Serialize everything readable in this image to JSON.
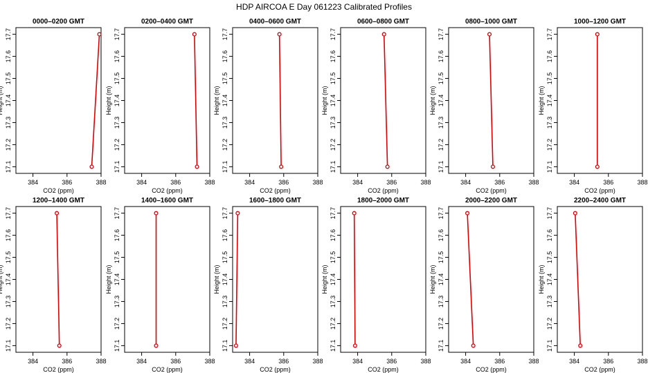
{
  "figure": {
    "title": "HDP  AIRCOA E  Day 061223  Calibrated Profiles",
    "line_color": "#e00000"
  },
  "chart_data": [
    {
      "type": "line",
      "title": "0000–0200 GMT",
      "xlabel": "CO2 (ppm)",
      "ylabel": "Height (m)",
      "xlim": [
        383,
        388
      ],
      "ylim": [
        17.07,
        17.73
      ],
      "xticks": [
        "384",
        "386",
        "388"
      ],
      "yticks": [
        "17.1",
        "17.2",
        "17.3",
        "17.4",
        "17.5",
        "17.6",
        "17.7"
      ],
      "series": [
        {
          "x": [
            387.45,
            387.9
          ],
          "y": [
            17.1,
            17.7
          ]
        }
      ]
    },
    {
      "type": "line",
      "title": "0200–0400 GMT",
      "xlabel": "CO2 (ppm)",
      "ylabel": "Height (m)",
      "xlim": [
        383,
        388
      ],
      "ylim": [
        17.07,
        17.73
      ],
      "xticks": [
        "384",
        "386",
        "388"
      ],
      "yticks": [
        "17.1",
        "17.2",
        "17.3",
        "17.4",
        "17.5",
        "17.6",
        "17.7"
      ],
      "series": [
        {
          "x": [
            387.25,
            387.1
          ],
          "y": [
            17.1,
            17.7
          ]
        }
      ]
    },
    {
      "type": "line",
      "title": "0400–0600 GMT",
      "xlabel": "CO2 (ppm)",
      "ylabel": "Height (m)",
      "xlim": [
        383,
        388
      ],
      "ylim": [
        17.07,
        17.73
      ],
      "xticks": [
        "384",
        "386",
        "388"
      ],
      "yticks": [
        "17.1",
        "17.2",
        "17.3",
        "17.4",
        "17.5",
        "17.6",
        "17.7"
      ],
      "series": [
        {
          "x": [
            385.85,
            385.75
          ],
          "y": [
            17.1,
            17.7
          ]
        }
      ]
    },
    {
      "type": "line",
      "title": "0600–0800 GMT",
      "xlabel": "CO2 (ppm)",
      "ylabel": "Height (m)",
      "xlim": [
        383,
        388
      ],
      "ylim": [
        17.07,
        17.73
      ],
      "xticks": [
        "384",
        "386",
        "388"
      ],
      "yticks": [
        "17.1",
        "17.2",
        "17.3",
        "17.4",
        "17.5",
        "17.6",
        "17.7"
      ],
      "series": [
        {
          "x": [
            385.75,
            385.55
          ],
          "y": [
            17.1,
            17.7
          ]
        }
      ]
    },
    {
      "type": "line",
      "title": "0800–1000 GMT",
      "xlabel": "CO2 (ppm)",
      "ylabel": "Height (m)",
      "xlim": [
        383,
        388
      ],
      "ylim": [
        17.07,
        17.73
      ],
      "xticks": [
        "384",
        "386",
        "388"
      ],
      "yticks": [
        "17.1",
        "17.2",
        "17.3",
        "17.4",
        "17.5",
        "17.6",
        "17.7"
      ],
      "series": [
        {
          "x": [
            385.6,
            385.4
          ],
          "y": [
            17.1,
            17.7
          ]
        }
      ]
    },
    {
      "type": "line",
      "title": "1000–1200 GMT",
      "xlabel": "CO2 (ppm)",
      "ylabel": "Height (m)",
      "xlim": [
        383,
        388
      ],
      "ylim": [
        17.07,
        17.73
      ],
      "xticks": [
        "384",
        "386",
        "388"
      ],
      "yticks": [
        "17.1",
        "17.2",
        "17.3",
        "17.4",
        "17.5",
        "17.6",
        "17.7"
      ],
      "series": [
        {
          "x": [
            385.35,
            385.35
          ],
          "y": [
            17.1,
            17.7
          ]
        }
      ]
    },
    {
      "type": "line",
      "title": "1200–1400 GMT",
      "xlabel": "CO2 (ppm)",
      "ylabel": "Height (m)",
      "xlim": [
        383,
        388
      ],
      "ylim": [
        17.07,
        17.73
      ],
      "xticks": [
        "384",
        "386",
        "388"
      ],
      "yticks": [
        "17.1",
        "17.2",
        "17.3",
        "17.4",
        "17.5",
        "17.6",
        "17.7"
      ],
      "series": [
        {
          "x": [
            385.55,
            385.4
          ],
          "y": [
            17.1,
            17.7
          ]
        }
      ]
    },
    {
      "type": "line",
      "title": "1400–1600 GMT",
      "xlabel": "CO2 (ppm)",
      "ylabel": "Height (m)",
      "xlim": [
        383,
        388
      ],
      "ylim": [
        17.07,
        17.73
      ],
      "xticks": [
        "384",
        "386",
        "388"
      ],
      "yticks": [
        "17.1",
        "17.2",
        "17.3",
        "17.4",
        "17.5",
        "17.6",
        "17.7"
      ],
      "series": [
        {
          "x": [
            384.85,
            384.85
          ],
          "y": [
            17.1,
            17.7
          ]
        }
      ]
    },
    {
      "type": "line",
      "title": "1600–1800 GMT",
      "xlabel": "CO2 (ppm)",
      "ylabel": "Height (m)",
      "xlim": [
        383,
        388
      ],
      "ylim": [
        17.07,
        17.73
      ],
      "xticks": [
        "384",
        "386",
        "388"
      ],
      "yticks": [
        "17.1",
        "17.2",
        "17.3",
        "17.4",
        "17.5",
        "17.6",
        "17.7"
      ],
      "series": [
        {
          "x": [
            383.2,
            383.3
          ],
          "y": [
            17.1,
            17.7
          ]
        }
      ]
    },
    {
      "type": "line",
      "title": "1800–2000 GMT",
      "xlabel": "CO2 (ppm)",
      "ylabel": "Height (m)",
      "xlim": [
        383,
        388
      ],
      "ylim": [
        17.07,
        17.73
      ],
      "xticks": [
        "384",
        "386",
        "388"
      ],
      "yticks": [
        "17.1",
        "17.2",
        "17.3",
        "17.4",
        "17.5",
        "17.6",
        "17.7"
      ],
      "series": [
        {
          "x": [
            383.85,
            383.8
          ],
          "y": [
            17.1,
            17.7
          ]
        }
      ]
    },
    {
      "type": "line",
      "title": "2000–2200 GMT",
      "xlabel": "CO2 (ppm)",
      "ylabel": "Height (m)",
      "xlim": [
        383,
        388
      ],
      "ylim": [
        17.07,
        17.73
      ],
      "xticks": [
        "384",
        "386",
        "388"
      ],
      "yticks": [
        "17.1",
        "17.2",
        "17.3",
        "17.4",
        "17.5",
        "17.6",
        "17.7"
      ],
      "series": [
        {
          "x": [
            384.45,
            384.1
          ],
          "y": [
            17.1,
            17.7
          ]
        }
      ]
    },
    {
      "type": "line",
      "title": "2200–2400 GMT",
      "xlabel": "CO2 (ppm)",
      "ylabel": "Height (m)",
      "xlim": [
        383,
        388
      ],
      "ylim": [
        17.07,
        17.73
      ],
      "xticks": [
        "384",
        "386",
        "388"
      ],
      "yticks": [
        "17.1",
        "17.2",
        "17.3",
        "17.4",
        "17.5",
        "17.6",
        "17.7"
      ],
      "series": [
        {
          "x": [
            384.35,
            384.05
          ],
          "y": [
            17.1,
            17.7
          ]
        }
      ]
    }
  ]
}
